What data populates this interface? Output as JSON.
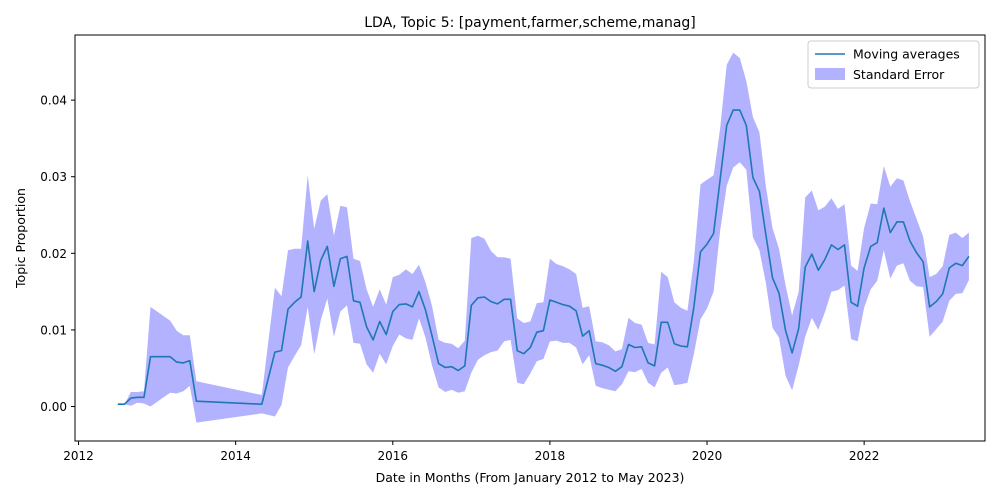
{
  "chart_data": {
    "type": "line",
    "title": "LDA, Topic 5: [payment,farmer,scheme,manag]",
    "xlabel": "Date in Months (From January 2012 to May 2023)",
    "ylabel": "Topic Proportion",
    "xlim": [
      "2011-12-15",
      "2023-07-15"
    ],
    "ylim": [
      -0.0045,
      0.0485
    ],
    "x_ticks": [
      "2012",
      "2014",
      "2016",
      "2018",
      "2020",
      "2022"
    ],
    "y_ticks": [
      "0.00",
      "0.01",
      "0.02",
      "0.03",
      "0.04"
    ],
    "grid": false,
    "legend": {
      "position": "top-right",
      "entries": [
        "Moving averages",
        "Standard Error"
      ]
    },
    "colors": {
      "line": "#1f77b4",
      "band": "#0000ff",
      "band_opacity": 0.3
    },
    "series": [
      {
        "name": "Moving averages",
        "x": [
          "2012-07",
          "2012-08",
          "2012-09",
          "2012-10",
          "2012-11",
          "2012-12",
          "2013-01",
          "2013-02",
          "2013-03",
          "2013-04",
          "2013-05",
          "2013-06",
          "2013-07",
          "2014-05",
          "2014-07",
          "2014-08",
          "2014-09",
          "2014-10",
          "2014-11",
          "2014-12",
          "2015-01",
          "2015-02",
          "2015-03",
          "2015-04",
          "2015-05",
          "2015-06",
          "2015-07",
          "2015-08",
          "2015-09",
          "2015-10",
          "2015-11",
          "2015-12",
          "2016-01",
          "2016-02",
          "2016-03",
          "2016-04",
          "2016-05",
          "2016-06",
          "2016-07",
          "2016-08",
          "2016-09",
          "2016-10",
          "2016-11",
          "2016-12",
          "2017-01",
          "2017-02",
          "2017-03",
          "2017-04",
          "2017-05",
          "2017-06",
          "2017-07",
          "2017-08",
          "2017-09",
          "2017-10",
          "2017-11",
          "2017-12",
          "2018-01",
          "2018-02",
          "2018-03",
          "2018-04",
          "2018-05",
          "2018-06",
          "2018-07",
          "2018-08",
          "2018-09",
          "2018-10",
          "2018-11",
          "2018-12",
          "2019-01",
          "2019-02",
          "2019-03",
          "2019-04",
          "2019-05",
          "2019-06",
          "2019-07",
          "2019-08",
          "2019-09",
          "2019-10",
          "2019-11",
          "2019-12",
          "2020-01",
          "2020-02",
          "2020-03",
          "2020-04",
          "2020-05",
          "2020-06",
          "2020-07",
          "2020-08",
          "2020-09",
          "2020-10",
          "2020-11",
          "2020-12",
          "2021-01",
          "2021-02",
          "2021-03",
          "2021-04",
          "2021-05",
          "2021-06",
          "2021-07",
          "2021-08",
          "2021-09",
          "2021-10",
          "2021-11",
          "2021-12",
          "2022-01",
          "2022-02",
          "2022-03",
          "2022-04",
          "2022-05",
          "2022-06",
          "2022-07",
          "2022-08",
          "2022-09",
          "2022-10",
          "2022-11",
          "2022-12",
          "2023-01",
          "2023-02",
          "2023-03",
          "2023-04",
          "2023-05"
        ],
        "y": [
          0.0003,
          0.0003,
          0.0011,
          0.0012,
          0.0012,
          0.0065,
          0.0065,
          0.0065,
          0.0065,
          0.0058,
          0.0057,
          0.006,
          0.0007,
          0.0003,
          0.0071,
          0.0073,
          0.0127,
          0.0136,
          0.0143,
          0.0216,
          0.015,
          0.0191,
          0.0209,
          0.0157,
          0.0193,
          0.0196,
          0.0138,
          0.0136,
          0.0104,
          0.0087,
          0.0111,
          0.0094,
          0.0124,
          0.0133,
          0.0134,
          0.013,
          0.015,
          0.0126,
          0.0092,
          0.0056,
          0.0051,
          0.0052,
          0.0047,
          0.0053,
          0.0132,
          0.0142,
          0.0143,
          0.0137,
          0.0134,
          0.014,
          0.014,
          0.0073,
          0.0069,
          0.0077,
          0.0097,
          0.0099,
          0.0139,
          0.0136,
          0.0133,
          0.0131,
          0.0125,
          0.0092,
          0.0099,
          0.0056,
          0.0054,
          0.0051,
          0.0046,
          0.0052,
          0.0081,
          0.0077,
          0.0078,
          0.0057,
          0.0053,
          0.011,
          0.011,
          0.0082,
          0.0079,
          0.0078,
          0.013,
          0.0202,
          0.0212,
          0.0226,
          0.0296,
          0.0367,
          0.0387,
          0.0387,
          0.0367,
          0.0299,
          0.0281,
          0.0224,
          0.0168,
          0.0148,
          0.0099,
          0.007,
          0.0102,
          0.0182,
          0.0199,
          0.0178,
          0.0192,
          0.0211,
          0.0205,
          0.0211,
          0.0136,
          0.0131,
          0.0181,
          0.0209,
          0.0214,
          0.0259,
          0.0227,
          0.0241,
          0.0241,
          0.0216,
          0.0201,
          0.0189,
          0.013,
          0.0137,
          0.0147,
          0.0181,
          0.0187,
          0.0184,
          0.0196
        ]
      },
      {
        "name": "Standard Error",
        "upper": [
          0.0003,
          0.0003,
          0.0019,
          0.0019,
          0.002,
          0.013,
          0.0124,
          0.0118,
          0.0112,
          0.0099,
          0.0093,
          0.0093,
          0.0033,
          0.0015,
          0.0155,
          0.0144,
          0.0204,
          0.0206,
          0.0206,
          0.0302,
          0.0232,
          0.0269,
          0.0277,
          0.0223,
          0.0262,
          0.026,
          0.0193,
          0.019,
          0.0153,
          0.013,
          0.0153,
          0.0133,
          0.0169,
          0.0172,
          0.0179,
          0.0173,
          0.0185,
          0.0162,
          0.0131,
          0.0087,
          0.0083,
          0.0082,
          0.0076,
          0.0086,
          0.022,
          0.0223,
          0.0219,
          0.0203,
          0.0195,
          0.0195,
          0.0193,
          0.0115,
          0.0109,
          0.0111,
          0.0135,
          0.0136,
          0.0193,
          0.0186,
          0.0183,
          0.0179,
          0.0173,
          0.0129,
          0.0131,
          0.0085,
          0.0084,
          0.008,
          0.0072,
          0.0075,
          0.0116,
          0.0109,
          0.0107,
          0.0083,
          0.0081,
          0.0176,
          0.0169,
          0.0136,
          0.0129,
          0.0125,
          0.0191,
          0.029,
          0.0296,
          0.0302,
          0.0363,
          0.0446,
          0.0462,
          0.0455,
          0.0425,
          0.0378,
          0.0358,
          0.0287,
          0.0233,
          0.0206,
          0.0158,
          0.0119,
          0.015,
          0.0273,
          0.0282,
          0.0256,
          0.0261,
          0.0272,
          0.0258,
          0.0264,
          0.0184,
          0.0177,
          0.0233,
          0.0265,
          0.0264,
          0.0314,
          0.0287,
          0.0298,
          0.0295,
          0.0268,
          0.0245,
          0.0222,
          0.0169,
          0.0173,
          0.0183,
          0.0224,
          0.0227,
          0.022,
          0.0227
        ],
        "lower": [
          0.0003,
          0.0003,
          0.0001,
          0.0005,
          0.0004,
          0.0,
          0.0006,
          0.0012,
          0.0018,
          0.0017,
          0.002,
          0.0027,
          -0.0021,
          -0.0009,
          -0.0013,
          0.0002,
          0.0051,
          0.0066,
          0.008,
          0.013,
          0.0068,
          0.0113,
          0.0141,
          0.0091,
          0.0124,
          0.0132,
          0.0083,
          0.0082,
          0.0055,
          0.0044,
          0.0069,
          0.0055,
          0.0079,
          0.0094,
          0.0089,
          0.0087,
          0.0115,
          0.009,
          0.0053,
          0.0025,
          0.0019,
          0.0022,
          0.0018,
          0.002,
          0.0044,
          0.0061,
          0.0067,
          0.0071,
          0.0073,
          0.0085,
          0.0087,
          0.0031,
          0.0029,
          0.0043,
          0.0059,
          0.0062,
          0.0085,
          0.0086,
          0.0083,
          0.0083,
          0.0077,
          0.0055,
          0.0067,
          0.0027,
          0.0024,
          0.0022,
          0.002,
          0.0029,
          0.0046,
          0.0045,
          0.0049,
          0.0031,
          0.0025,
          0.0044,
          0.0051,
          0.0028,
          0.0029,
          0.0031,
          0.0069,
          0.0114,
          0.0128,
          0.015,
          0.0229,
          0.0288,
          0.0312,
          0.0319,
          0.0309,
          0.0221,
          0.0204,
          0.0161,
          0.0103,
          0.009,
          0.004,
          0.0021,
          0.0054,
          0.0091,
          0.0116,
          0.01,
          0.0123,
          0.015,
          0.0152,
          0.0158,
          0.0088,
          0.0085,
          0.0129,
          0.0153,
          0.0164,
          0.0204,
          0.0167,
          0.0184,
          0.0187,
          0.0164,
          0.0157,
          0.0156,
          0.0091,
          0.0101,
          0.0111,
          0.0138,
          0.0147,
          0.0148,
          0.0165
        ]
      }
    ]
  }
}
